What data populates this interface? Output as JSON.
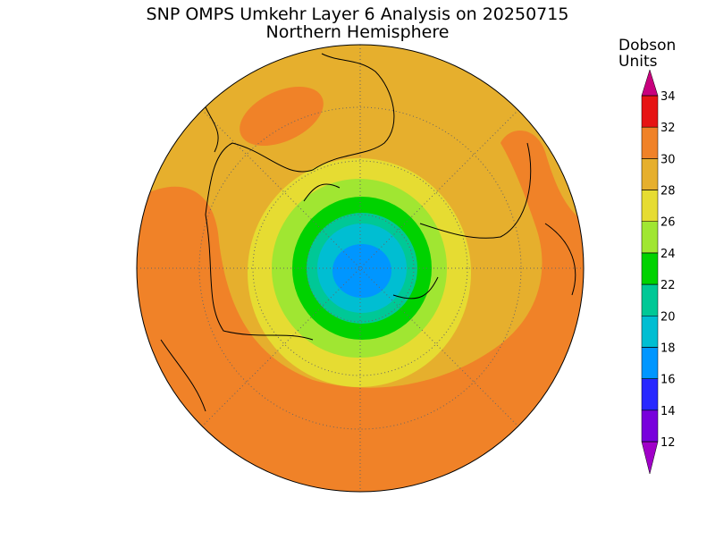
{
  "title": "SNP OMPS Umkehr Layer 6 Analysis on 20250715",
  "subtitle": "Northern Hemisphere",
  "colorbar": {
    "label_lines": [
      "Dobson",
      "Units"
    ],
    "ticks": [
      12,
      14,
      16,
      18,
      20,
      22,
      24,
      26,
      28,
      30,
      32,
      34
    ],
    "colors": [
      "#a000c8",
      "#7800dc",
      "#2828ff",
      "#0096ff",
      "#00bed2",
      "#00c896",
      "#00d200",
      "#a0e632",
      "#e6dc32",
      "#e6af2d",
      "#f08228",
      "#e61414",
      "#c8007d"
    ]
  }
}
